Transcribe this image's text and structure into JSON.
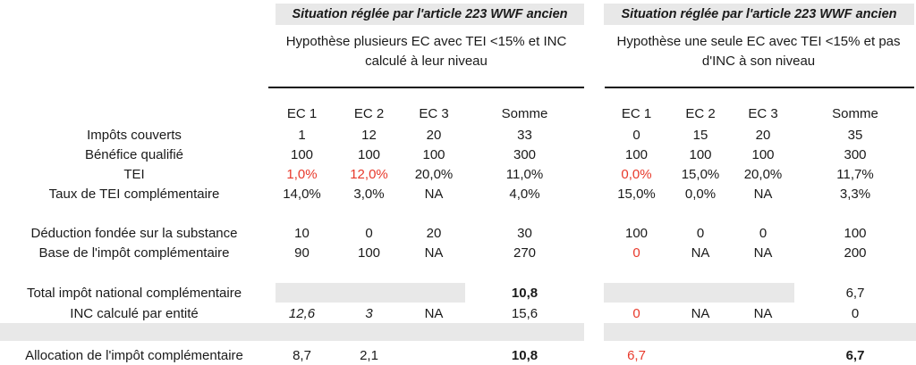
{
  "left_panel": {
    "title": "Situation réglée par l'article 223 WWF ancien",
    "hypothesis": "Hypothèse plusieurs EC avec TEI <15% et INC calculé à leur niveau",
    "columns": [
      "EC 1",
      "EC 2",
      "EC 3",
      "Somme"
    ]
  },
  "right_panel": {
    "title": "Situation réglée par l'article 223 WWF ancien",
    "hypothesis": "Hypothèse une seule EC avec TEI <15% et pas d'INC à son niveau",
    "columns": [
      "EC 1",
      "EC 2",
      "EC 3",
      "Somme"
    ]
  },
  "colors": {
    "band_gray": "#e8e8e8",
    "highlight_red": "#e8392b"
  },
  "rows": [
    {
      "label": "Impôts couverts",
      "l": [
        "1",
        "12",
        "20",
        "33"
      ],
      "r": [
        "0",
        "15",
        "20",
        "35"
      ]
    },
    {
      "label": "Bénéfice qualifié",
      "l": [
        "100",
        "100",
        "100",
        "300"
      ],
      "r": [
        "100",
        "100",
        "100",
        "300"
      ]
    },
    {
      "label": "TEI",
      "l": [
        "1,0%",
        "12,0%",
        "20,0%",
        "11,0%"
      ],
      "r": [
        "0,0%",
        "15,0%",
        "20,0%",
        "11,7%"
      ]
    },
    {
      "label": "Taux de TEI complémentaire",
      "l": [
        "14,0%",
        "3,0%",
        "NA",
        "4,0%"
      ],
      "r": [
        "15,0%",
        "0,0%",
        "NA",
        "3,3%"
      ]
    },
    {
      "label": "Déduction fondée sur la substance",
      "l": [
        "10",
        "0",
        "20",
        "30"
      ],
      "r": [
        "100",
        "0",
        "0",
        "100"
      ]
    },
    {
      "label": "Base de l'impôt complémentaire",
      "l": [
        "90",
        "100",
        "NA",
        "270"
      ],
      "r": [
        "0",
        "NA",
        "NA",
        "200"
      ]
    },
    {
      "label": "Total impôt national complémentaire",
      "l": [
        "",
        "",
        "",
        "10,8"
      ],
      "r": [
        "",
        "",
        "",
        "6,7"
      ]
    },
    {
      "label": "INC calculé par entité",
      "l": [
        "12,6",
        "3",
        "NA",
        "15,6"
      ],
      "r": [
        "0",
        "NA",
        "NA",
        "0"
      ]
    },
    {
      "label": "Allocation de l'impôt complémentaire",
      "l": [
        "8,7",
        "2,1",
        "",
        "10,8"
      ],
      "r": [
        "6,7",
        "",
        "",
        "6,7"
      ]
    }
  ]
}
